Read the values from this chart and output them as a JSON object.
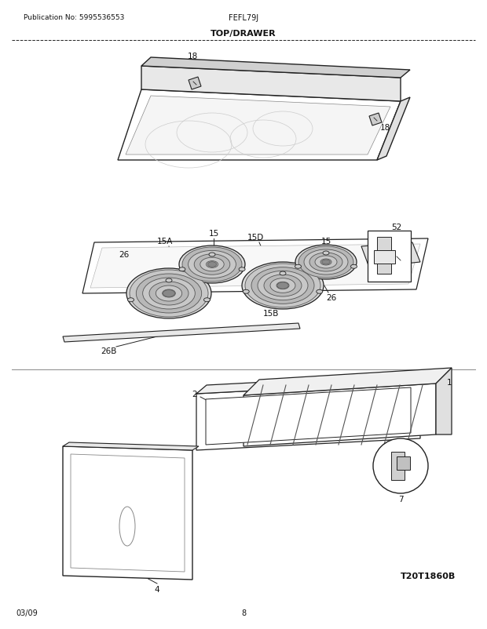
{
  "title": "TOP/DRAWER",
  "pub_no": "Publication No: 5995536553",
  "model": "FEFL79J",
  "date": "03/09",
  "page": "8",
  "diagram_id": "T20T1860B",
  "bg_color": "#ffffff",
  "line_color": "#222222",
  "text_color": "#111111"
}
